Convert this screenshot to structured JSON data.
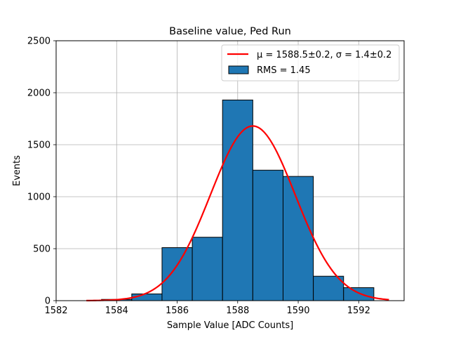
{
  "chart_data": {
    "type": "bar",
    "title": "Baseline value, Ped Run",
    "xlabel": "Sample Value [ADC Counts]",
    "ylabel": "Events",
    "xlim": [
      1582,
      1593.5
    ],
    "ylim": [
      0,
      2500
    ],
    "xticks": [
      "1582",
      "1584",
      "1586",
      "1588",
      "1590",
      "1592"
    ],
    "yticks": [
      "0",
      "500",
      "1000",
      "1500",
      "2000",
      "2500"
    ],
    "grid": true,
    "legend_position": "top-right",
    "histogram": {
      "name": "RMS = 1.45",
      "color": "#1f77b4",
      "edge_color": "#000000",
      "bin_edges": [
        1583.5,
        1584.5,
        1585.5,
        1586.5,
        1587.5,
        1588.5,
        1589.5,
        1590.5,
        1591.5,
        1592.5
      ],
      "counts": [
        12,
        65,
        510,
        610,
        1930,
        1255,
        1195,
        235,
        125
      ]
    },
    "fit": {
      "name_prefix": "μ = 1588.5±0.2, σ = 1.4±0.2",
      "color": "#ff0000",
      "mu": 1588.5,
      "sigma": 1.4,
      "amplitude": 1680,
      "x_range": [
        1583,
        1593
      ]
    }
  }
}
